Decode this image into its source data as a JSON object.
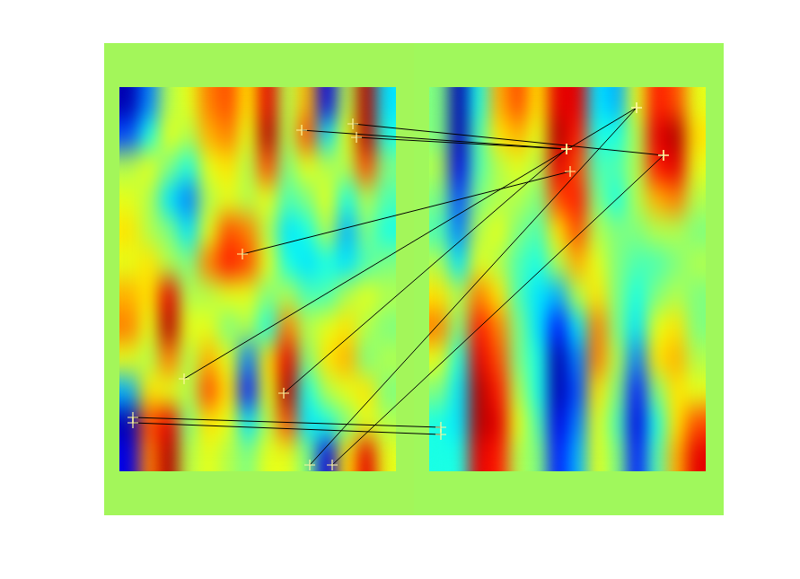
{
  "chart_data": {
    "type": "feature_matches",
    "tick_labels": false,
    "xlim": [
      0,
      308
    ],
    "ylim": [
      428,
      0
    ],
    "color_range": [
      -1,
      1
    ],
    "images": [
      {
        "cells": [
          [
            -0.9,
            -0.5,
            0.1,
            0.2,
            0.5,
            0.6,
            0.3,
            0.8,
            0.1,
            0.4,
            -0.8,
            0.1,
            0.9,
            -0.3
          ],
          [
            -0.6,
            -0.2,
            0.2,
            0.1,
            0.4,
            0.5,
            0.2,
            0.9,
            0.1,
            0.6,
            -0.3,
            0.2,
            0.9,
            -0.2
          ],
          [
            0.1,
            0.2,
            0.0,
            -0.2,
            0.2,
            0.3,
            0.1,
            0.6,
            0.0,
            0.2,
            0.1,
            0.1,
            0.6,
            0.0
          ],
          [
            0.2,
            0.1,
            -0.3,
            -0.5,
            0.1,
            0.2,
            0.1,
            0.2,
            -0.1,
            0.0,
            0.2,
            -0.2,
            0.1,
            -0.1
          ],
          [
            0.3,
            0.1,
            0.0,
            -0.3,
            0.2,
            0.6,
            0.5,
            0.1,
            -0.3,
            -0.2,
            0.1,
            -0.4,
            0.0,
            -0.2
          ],
          [
            0.2,
            0.3,
            0.1,
            0.0,
            0.5,
            0.7,
            0.6,
            0.2,
            -0.2,
            -0.3,
            -0.2,
            -0.3,
            -0.1,
            0.0
          ],
          [
            0.4,
            0.3,
            0.8,
            0.1,
            0.1,
            0.2,
            0.2,
            0.0,
            0.1,
            -0.1,
            -0.1,
            0.1,
            0.2,
            0.1
          ],
          [
            0.5,
            0.2,
            0.9,
            0.2,
            0.2,
            0.0,
            0.1,
            -0.2,
            0.5,
            0.1,
            0.2,
            0.3,
            0.1,
            0.0
          ],
          [
            0.2,
            0.1,
            0.5,
            0.1,
            0.4,
            0.2,
            -0.5,
            0.3,
            0.8,
            0.0,
            0.3,
            0.4,
            0.0,
            0.1
          ],
          [
            -0.4,
            0.3,
            0.2,
            0.1,
            0.6,
            0.3,
            -0.7,
            0.2,
            0.9,
            -0.2,
            0.1,
            0.2,
            0.3,
            0.0
          ],
          [
            -0.9,
            0.6,
            0.8,
            0.0,
            0.3,
            0.2,
            -0.3,
            0.1,
            0.6,
            -0.3,
            -0.2,
            0.0,
            0.2,
            0.1
          ],
          [
            -0.8,
            0.5,
            0.9,
            0.1,
            0.2,
            0.1,
            0.0,
            0.2,
            0.2,
            0.0,
            -0.8,
            0.3,
            0.8,
            0.2
          ]
        ]
      },
      {
        "cells": [
          [
            0.0,
            -0.9,
            -0.2,
            0.4,
            0.6,
            0.3,
            0.8,
            0.8,
            -0.3,
            -0.4,
            0.2,
            0.7,
            0.6,
            0.2
          ],
          [
            0.0,
            -0.9,
            -0.1,
            0.3,
            0.4,
            0.2,
            0.9,
            0.7,
            -0.2,
            -0.2,
            0.1,
            0.8,
            0.9,
            0.3
          ],
          [
            0.1,
            -0.8,
            -0.1,
            0.1,
            0.2,
            0.1,
            0.8,
            0.6,
            -0.1,
            -0.1,
            0.1,
            0.7,
            0.8,
            0.2
          ],
          [
            0.0,
            -0.6,
            0.0,
            0.1,
            0.1,
            0.0,
            0.6,
            0.7,
            0.0,
            -0.2,
            0.1,
            0.4,
            0.5,
            0.1
          ],
          [
            -0.1,
            -0.5,
            0.1,
            0.2,
            0.0,
            -0.1,
            0.3,
            0.6,
            0.1,
            0.0,
            0.0,
            0.1,
            0.1,
            0.0
          ],
          [
            0.1,
            -0.3,
            0.2,
            0.1,
            -0.1,
            -0.2,
            0.1,
            0.4,
            0.2,
            0.0,
            -0.1,
            -0.1,
            0.0,
            0.1
          ],
          [
            0.3,
            0.1,
            0.5,
            0.3,
            -0.1,
            -0.3,
            -0.4,
            0.1,
            0.3,
            0.0,
            -0.2,
            0.0,
            0.1,
            0.0
          ],
          [
            0.5,
            0.0,
            0.7,
            0.5,
            0.0,
            -0.3,
            -0.7,
            -0.3,
            0.5,
            0.0,
            -0.3,
            0.2,
            0.3,
            0.0
          ],
          [
            0.2,
            -0.2,
            0.8,
            0.6,
            0.0,
            -0.2,
            -0.9,
            -0.5,
            0.5,
            0.1,
            -0.5,
            0.3,
            0.4,
            0.1
          ],
          [
            0.0,
            -0.3,
            0.9,
            0.7,
            0.1,
            -0.2,
            -0.9,
            -0.6,
            0.3,
            0.0,
            -0.7,
            0.0,
            0.3,
            0.2
          ],
          [
            -0.2,
            -0.3,
            0.9,
            0.8,
            0.2,
            -0.1,
            -0.8,
            -0.5,
            0.2,
            -0.1,
            -0.8,
            -0.2,
            0.3,
            0.6
          ],
          [
            -0.2,
            -0.2,
            0.8,
            0.7,
            0.1,
            0.0,
            -0.7,
            -0.4,
            0.2,
            0.0,
            -0.7,
            -0.1,
            0.4,
            0.8
          ]
        ]
      }
    ],
    "matches": {
      "left": {
        "x": [
          203,
          260,
          264,
          137,
          72,
          183,
          15,
          15,
          212,
          237
        ],
        "y": [
          48,
          41,
          56,
          186,
          325,
          341,
          368,
          374,
          421,
          421
        ]
      },
      "right": {
        "x": [
          153,
          261,
          153,
          157,
          231,
          153,
          13,
          13,
          231,
          261
        ],
        "y": [
          69,
          76,
          69,
          94,
          23,
          69,
          379,
          387,
          23,
          76
        ]
      }
    }
  }
}
